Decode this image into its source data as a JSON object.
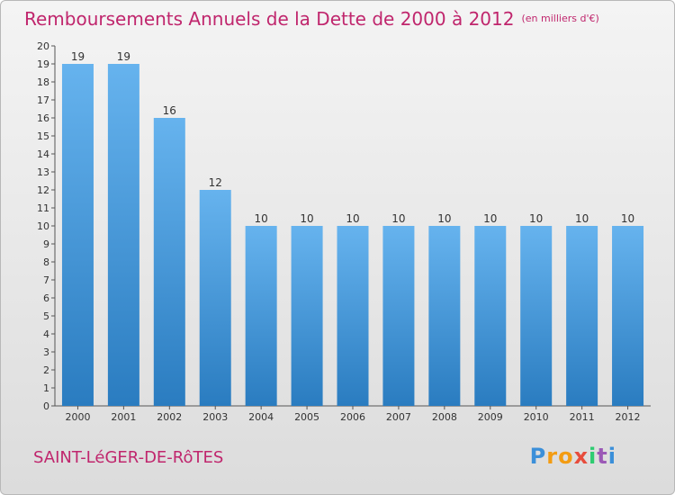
{
  "header": {
    "title": "Remboursements Annuels de la Dette de 2000 à 2012",
    "unit": "(en milliers d'€)"
  },
  "footer": {
    "commune": "SAINT-LéGER-DE-RôTES",
    "logo": "Proxiti"
  },
  "colors": {
    "title": "#c0266d",
    "bar_top": "#66b3ee",
    "bar_bottom": "#2a7cc0"
  },
  "chart_data": {
    "type": "bar",
    "categories": [
      "2000",
      "2001",
      "2002",
      "2003",
      "2004",
      "2005",
      "2006",
      "2007",
      "2008",
      "2009",
      "2010",
      "2011",
      "2012"
    ],
    "values": [
      19,
      19,
      16,
      12,
      10,
      10,
      10,
      10,
      10,
      10,
      10,
      10,
      10
    ],
    "title": "Remboursements Annuels de la Dette de 2000 à 2012",
    "ylim": [
      0,
      20
    ],
    "yticks": [
      0,
      1,
      2,
      3,
      4,
      5,
      6,
      7,
      8,
      9,
      10,
      11,
      12,
      13,
      14,
      15,
      16,
      17,
      18,
      19,
      20
    ],
    "grid": false,
    "data_labels": true
  }
}
